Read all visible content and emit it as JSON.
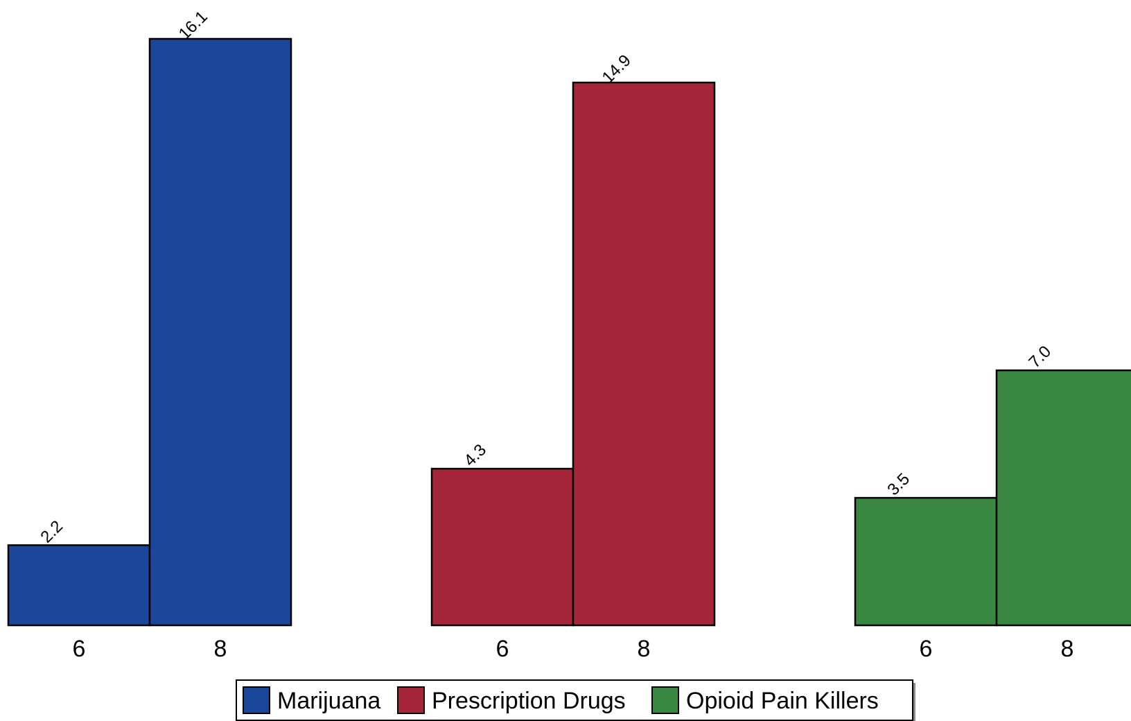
{
  "chart_data": {
    "type": "bar",
    "title": "",
    "xlabel": "",
    "ylabel": "",
    "ylim": [
      0,
      16.1
    ],
    "grid": false,
    "legend_position": "bottom-center",
    "groups": [
      {
        "name": "Marijuana",
        "color": "#1a4799",
        "categories": [
          "6",
          "8"
        ],
        "values": [
          2.2,
          16.1
        ],
        "labels": [
          "2.2",
          "16.1"
        ]
      },
      {
        "name": "Prescription Drugs",
        "color": "#a52639",
        "categories": [
          "6",
          "8"
        ],
        "values": [
          4.3,
          14.9
        ],
        "labels": [
          "4.3",
          "14.9"
        ]
      },
      {
        "name": "Opioid Pain Killers",
        "color": "#3a8742",
        "categories": [
          "6",
          "8"
        ],
        "values": [
          3.5,
          7.0
        ],
        "labels": [
          "3.5",
          "7.0"
        ]
      }
    ],
    "legend": [
      "Marijuana",
      "Prescription Drugs",
      "Opioid Pain Killers"
    ]
  }
}
